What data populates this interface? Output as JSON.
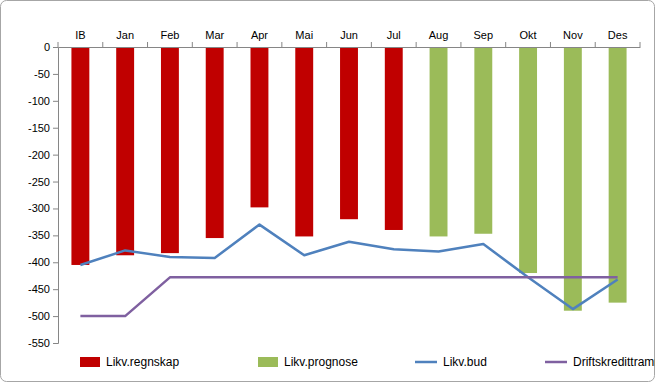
{
  "chart_data": {
    "type": "bar",
    "categories": [
      "IB",
      "Jan",
      "Feb",
      "Mar",
      "Apr",
      "Mai",
      "Jun",
      "Jul",
      "Aug",
      "Sep",
      "Okt",
      "Nov",
      "Des"
    ],
    "series": [
      {
        "name": "Likv.regnskap",
        "type": "bar",
        "color": "#c00000",
        "values": [
          -405,
          -387,
          -383,
          -355,
          -298,
          -352,
          -320,
          -340,
          null,
          null,
          null,
          null,
          null
        ]
      },
      {
        "name": "Likv.prognose",
        "type": "bar",
        "color": "#9bbb59",
        "values": [
          null,
          null,
          null,
          null,
          null,
          null,
          null,
          null,
          -352,
          -347,
          -420,
          -490,
          -475
        ]
      },
      {
        "name": "Likv.bud",
        "type": "line",
        "color": "#4f81bd",
        "values": [
          -405,
          -378,
          -390,
          -392,
          -330,
          -387,
          -362,
          -376,
          -380,
          -366,
          -428,
          -487,
          -432
        ]
      },
      {
        "name": "Driftskredittramme",
        "type": "line",
        "color": "#7f60a0",
        "values": [
          -500,
          -500,
          -428,
          -428,
          -428,
          -428,
          -428,
          -428,
          -428,
          -428,
          -428,
          -428,
          -428
        ]
      }
    ],
    "stacked": true,
    "ylim": [
      -550,
      0
    ],
    "yticks": [
      -550,
      -500,
      -450,
      -400,
      -350,
      -300,
      -250,
      -200,
      -150,
      -100,
      -50,
      0
    ],
    "legend": "bottom"
  }
}
